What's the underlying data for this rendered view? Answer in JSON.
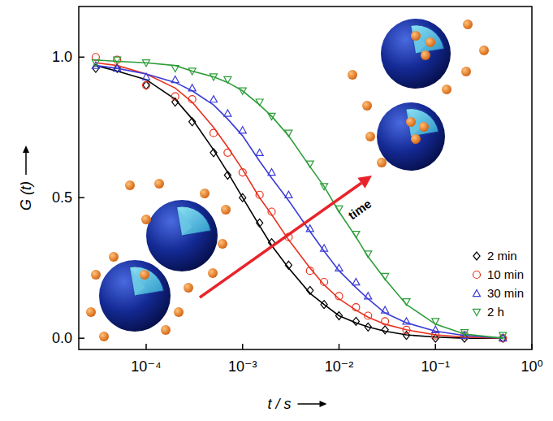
{
  "chart_data": {
    "type": "line",
    "x_label": "t / s",
    "y_label": "G (t)",
    "log": "x",
    "xlim": [
      2e-05,
      1
    ],
    "ylim": [
      -0.04,
      1.18
    ],
    "xticks": [
      {
        "value": 0.0001,
        "label": "10⁻⁴"
      },
      {
        "value": 0.001,
        "label": "10⁻³"
      },
      {
        "value": 0.01,
        "label": "10⁻²"
      },
      {
        "value": 0.1,
        "label": "10⁻¹"
      },
      {
        "value": 1,
        "label": "10⁰"
      }
    ],
    "yticks": [
      {
        "value": 0,
        "label": "0.0"
      },
      {
        "value": 0.5,
        "label": "0.5"
      },
      {
        "value": 1,
        "label": "1.0"
      }
    ],
    "legend": "lower right",
    "annotations": [
      {
        "text": "time"
      }
    ],
    "x": [
      3e-05,
      5e-05,
      0.0001,
      0.0002,
      0.0003,
      0.0005,
      0.0007,
      0.001,
      0.0015,
      0.002,
      0.003,
      0.005,
      0.007,
      0.01,
      0.015,
      0.02,
      0.03,
      0.05,
      0.1,
      0.2,
      0.5
    ],
    "series": [
      {
        "name": "2 min",
        "color": "#000000",
        "marker": "diamond",
        "values": [
          0.96,
          0.96,
          0.9,
          0.84,
          0.77,
          0.66,
          0.58,
          0.5,
          0.41,
          0.34,
          0.26,
          0.17,
          0.12,
          0.08,
          0.06,
          0.04,
          0.03,
          0.01,
          0,
          0,
          0
        ],
        "fit": [
          0.97,
          0.95,
          0.92,
          0.85,
          0.78,
          0.67,
          0.59,
          0.5,
          0.4,
          0.33,
          0.25,
          0.16,
          0.12,
          0.08,
          0.055,
          0.04,
          0.025,
          0.012,
          0.004,
          0,
          0
        ]
      },
      {
        "name": "10 min",
        "color": "#e8321e",
        "marker": "circle",
        "values": [
          1.0,
          0.99,
          0.9,
          0.86,
          0.85,
          0.73,
          0.66,
          0.59,
          0.51,
          0.45,
          0.36,
          0.24,
          0.2,
          0.15,
          0.11,
          0.08,
          0.06,
          0.03,
          0.01,
          0.01,
          0
        ],
        "fit": [
          0.98,
          0.97,
          0.94,
          0.89,
          0.84,
          0.75,
          0.68,
          0.6,
          0.5,
          0.44,
          0.35,
          0.25,
          0.19,
          0.14,
          0.1,
          0.075,
          0.05,
          0.03,
          0.012,
          0.004,
          0
        ]
      },
      {
        "name": "30 min",
        "color": "#3b3bd8",
        "marker": "triangle-up",
        "values": [
          0.97,
          0.96,
          0.93,
          0.92,
          0.89,
          0.85,
          0.8,
          0.74,
          0.66,
          0.59,
          0.51,
          0.39,
          0.32,
          0.25,
          0.2,
          0.15,
          0.1,
          0.06,
          0.03,
          0.01,
          0
        ],
        "fit": [
          0.97,
          0.96,
          0.94,
          0.91,
          0.88,
          0.83,
          0.78,
          0.72,
          0.63,
          0.57,
          0.49,
          0.38,
          0.31,
          0.24,
          0.18,
          0.14,
          0.09,
          0.055,
          0.025,
          0.01,
          0
        ]
      },
      {
        "name": "2 h",
        "color": "#2e9e3a",
        "marker": "triangle-down",
        "values": [
          0.98,
          0.99,
          0.98,
          0.96,
          0.95,
          0.93,
          0.92,
          0.88,
          0.84,
          0.79,
          0.73,
          0.62,
          0.54,
          0.46,
          0.37,
          0.3,
          0.22,
          0.13,
          0.06,
          0.02,
          0.01
        ],
        "fit": [
          0.99,
          0.985,
          0.98,
          0.97,
          0.95,
          0.93,
          0.91,
          0.88,
          0.83,
          0.79,
          0.72,
          0.61,
          0.54,
          0.45,
          0.36,
          0.29,
          0.21,
          0.12,
          0.05,
          0.015,
          0
        ]
      }
    ]
  }
}
